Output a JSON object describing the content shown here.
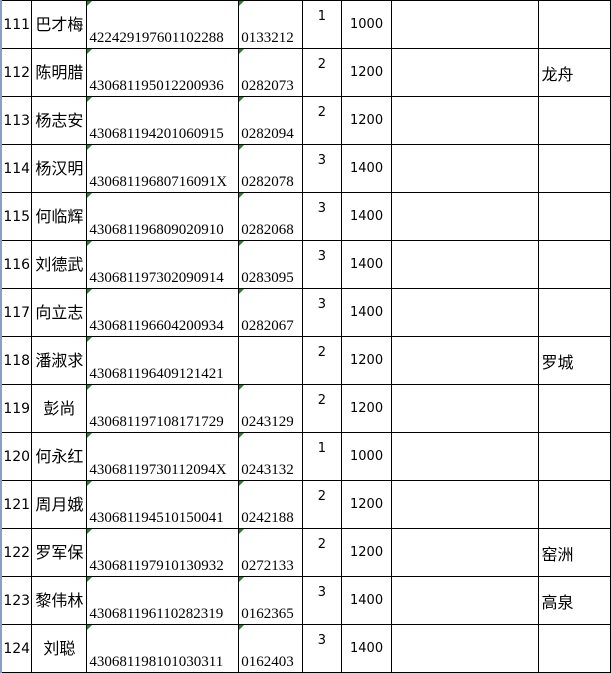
{
  "rows": [
    {
      "no": "111",
      "name": "巴才梅",
      "id": "422429197601102288",
      "code": "0133212",
      "count": "1",
      "amount": "1000",
      "note": "",
      "place": ""
    },
    {
      "no": "112",
      "name": "陈明腊",
      "id": "430681195012200936",
      "code": "0282073",
      "count": "2",
      "amount": "1200",
      "note": "",
      "place": "龙舟"
    },
    {
      "no": "113",
      "name": "杨志安",
      "id": "430681194201060915",
      "code": "0282094",
      "count": "2",
      "amount": "1200",
      "note": "",
      "place": ""
    },
    {
      "no": "114",
      "name": "杨汉明",
      "id": "43068119680716091X",
      "code": "0282078",
      "count": "3",
      "amount": "1400",
      "note": "",
      "place": ""
    },
    {
      "no": "115",
      "name": "何临辉",
      "id": "430681196809020910",
      "code": "0282068",
      "count": "3",
      "amount": "1400",
      "note": "",
      "place": ""
    },
    {
      "no": "116",
      "name": "刘德武",
      "id": "430681197302090914",
      "code": "0283095",
      "count": "3",
      "amount": "1400",
      "note": "",
      "place": ""
    },
    {
      "no": "117",
      "name": "向立志",
      "id": "430681196604200934",
      "code": "0282067",
      "count": "3",
      "amount": "1400",
      "note": "",
      "place": ""
    },
    {
      "no": "118",
      "name": "潘淑求",
      "id": "430681196409121421",
      "code": "",
      "count": "2",
      "amount": "1200",
      "note": "",
      "place": "罗城"
    },
    {
      "no": "119",
      "name": "彭尚",
      "id": "430681197108171729",
      "code": "0243129",
      "count": "2",
      "amount": "1200",
      "note": "",
      "place": ""
    },
    {
      "no": "120",
      "name": "何永红",
      "id": "43068119730112094X",
      "code": "0243132",
      "count": "1",
      "amount": "1000",
      "note": "",
      "place": ""
    },
    {
      "no": "121",
      "name": "周月娥",
      "id": "430681194510150041",
      "code": "0242188",
      "count": "2",
      "amount": "1200",
      "note": "",
      "place": ""
    },
    {
      "no": "122",
      "name": "罗军保",
      "id": "430681197910130932",
      "code": "0272133",
      "count": "2",
      "amount": "1200",
      "note": "",
      "place": "窑洲"
    },
    {
      "no": "123",
      "name": "黎伟林",
      "id": "430681196110282319",
      "code": "0162365",
      "count": "3",
      "amount": "1400",
      "note": "",
      "place": "高泉"
    },
    {
      "no": "124",
      "name": "刘聪",
      "id": "430681198101030311",
      "code": "0162403",
      "count": "3",
      "amount": "1400",
      "note": "",
      "place": ""
    }
  ],
  "colors": {
    "grid": "#000000",
    "text_marker": "#1a8a1a"
  }
}
